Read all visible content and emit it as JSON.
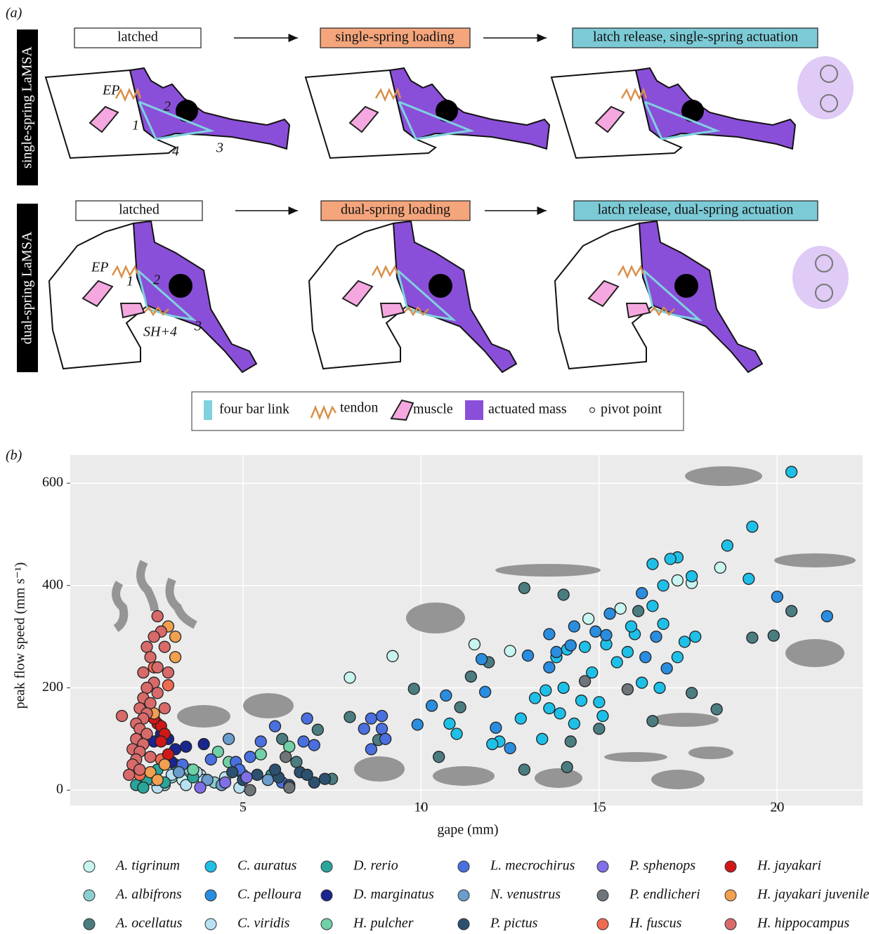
{
  "panel_a": {
    "label": "(a)",
    "rows": [
      {
        "title": "single-spring LaMSA",
        "steps": [
          "latched",
          "single-spring loading",
          "latch release, single-spring actuation"
        ],
        "annotations": [
          "EP",
          "1",
          "2",
          "3",
          "4"
        ]
      },
      {
        "title": "dual-spring LaMSA",
        "steps": [
          "latched",
          "dual-spring loading",
          "latch release, dual-spring actuation"
        ],
        "annotations": [
          "EP",
          "1",
          "2",
          "SH+4",
          "3"
        ]
      }
    ],
    "legend": [
      "four bar link",
      "tendon",
      "muscle",
      "actuated mass",
      "pivot point"
    ]
  },
  "chart_data": {
    "type": "scatter",
    "panel_label": "(b)",
    "x_label": "gape (mm)",
    "y_label": "peak flow speed (mm s⁻¹)",
    "xlim": [
      0.15,
      22.4
    ],
    "ylim": [
      -30,
      655
    ],
    "xticks": [
      5,
      10,
      15,
      20
    ],
    "yticks": [
      0,
      200,
      400,
      600
    ],
    "grid": true,
    "series": [
      {
        "name": "A. tigrinum",
        "color": "#c8f5f0",
        "x": [
          8.0,
          9.2,
          11.5,
          12.5,
          15.6,
          14.7,
          17.2,
          18.4,
          17.6,
          3.3,
          3.8
        ],
        "values": [
          220,
          262,
          285,
          272,
          355,
          335,
          410,
          435,
          405,
          20,
          30
        ]
      },
      {
        "name": "A. albifrons",
        "color": "#8ccfd0",
        "x": [
          3.0,
          3.5,
          4.2,
          5.0,
          2.8
        ],
        "values": [
          25,
          40,
          15,
          30,
          10
        ]
      },
      {
        "name": "A. ocellatus",
        "color": "#4a7c80",
        "x": [
          12.9,
          14.0,
          16.1,
          19.3,
          19.9,
          20.4,
          15.0,
          16.5,
          17.6,
          18.3,
          14.2,
          14.1,
          12.9,
          10.5,
          11.4,
          11.1,
          11.9,
          9.8,
          8.0,
          7.1,
          8.8,
          6.1,
          6.5,
          7.5
        ],
        "values": [
          395,
          382,
          350,
          298,
          302,
          350,
          120,
          135,
          190,
          158,
          95,
          45,
          40,
          65,
          222,
          162,
          250,
          198,
          143,
          118,
          98,
          100,
          55,
          22
        ]
      },
      {
        "name": "C. auratus",
        "color": "#1ec0e8",
        "x": [
          20.4,
          19.3,
          18.6,
          17.2,
          16.5,
          17.0,
          16.8,
          17.6,
          19.2,
          17.7,
          17.4,
          16.8,
          16.5,
          16.0,
          15.8,
          15.2,
          14.6,
          14.1,
          13.8,
          13.5,
          13.2,
          12.8,
          13.6,
          14.0,
          14.8,
          15.5,
          15.0,
          14.3,
          13.4,
          12.2,
          11.0,
          10.8,
          12.0,
          15.1,
          16.2,
          14.5,
          13.9,
          16.7,
          17.2,
          15.9
        ],
        "values": [
          622,
          515,
          478,
          455,
          442,
          452,
          400,
          418,
          413,
          300,
          290,
          325,
          360,
          305,
          270,
          285,
          280,
          275,
          260,
          195,
          180,
          140,
          160,
          200,
          230,
          250,
          172,
          130,
          100,
          95,
          110,
          130,
          90,
          145,
          210,
          175,
          150,
          200,
          260,
          320
        ]
      },
      {
        "name": "C. pelloura",
        "color": "#2a8de0",
        "x": [
          10.7,
          10.3,
          9.9,
          11.7,
          11.8,
          12.5,
          12.1,
          13.0,
          13.8,
          13.6,
          14.3,
          14.9,
          15.3,
          15.2,
          16.2,
          16.3,
          16.9,
          16.6,
          20.0,
          21.4,
          13.6,
          14.2
        ],
        "values": [
          185,
          165,
          128,
          256,
          192,
          82,
          122,
          263,
          270,
          305,
          320,
          310,
          345,
          303,
          385,
          260,
          238,
          300,
          378,
          340,
          240,
          283
        ]
      },
      {
        "name": "C. viridis",
        "color": "#b8e0f0",
        "x": [
          3.0,
          3.4,
          3.9,
          4.5,
          2.6,
          2.5,
          4.9,
          3.7
        ],
        "values": [
          30,
          10,
          20,
          25,
          5,
          20,
          5,
          35
        ]
      },
      {
        "name": "D. rerio",
        "color": "#2aa59a",
        "x": [
          2.0,
          2.3,
          2.6,
          3.1,
          2.8,
          2.2,
          3.6,
          5.8
        ],
        "values": [
          10,
          20,
          40,
          50,
          15,
          5,
          25,
          30
        ]
      },
      {
        "name": "D. marginatus",
        "color": "#1a2590",
        "x": [
          2.7,
          2.9,
          3.0,
          3.1,
          3.4,
          3.9,
          2.5
        ],
        "values": [
          110,
          100,
          55,
          80,
          85,
          90,
          95
        ]
      },
      {
        "name": "H. pulcher",
        "color": "#70d0a8",
        "x": [
          4.3,
          5.5,
          6.3,
          3.6,
          4.6
        ],
        "values": [
          75,
          70,
          85,
          40,
          55
        ]
      },
      {
        "name": "L. mecrochirus",
        "color": "#4a70e0",
        "x": [
          5.9,
          6.8,
          8.6,
          8.9,
          8.9,
          9.0,
          8.4,
          8.6,
          6.7,
          5.5,
          5.2,
          4.8,
          4.1,
          3.3,
          7.0,
          6.1,
          4.9
        ],
        "values": [
          125,
          140,
          140,
          145,
          120,
          100,
          120,
          80,
          95,
          95,
          65,
          55,
          60,
          50,
          88,
          15,
          40
        ]
      },
      {
        "name": "N. venustrus",
        "color": "#6a9ccc",
        "x": [
          4.6,
          4.0,
          3.2,
          5.7,
          4.4
        ],
        "values": [
          100,
          20,
          35,
          20,
          10
        ]
      },
      {
        "name": "P. pictus",
        "color": "#2c5070",
        "x": [
          5.0,
          5.4,
          6.0,
          6.6,
          7.0,
          7.3,
          6.3,
          4.7,
          5.9,
          6.8
        ],
        "values": [
          20,
          30,
          25,
          35,
          15,
          22,
          10,
          35,
          40,
          30
        ]
      },
      {
        "name": "P. sphenops",
        "color": "#8070e8",
        "x": [
          5.1,
          4.5,
          3.8
        ],
        "values": [
          25,
          15,
          5
        ]
      },
      {
        "name": "P. endlicheri",
        "color": "#70757c",
        "x": [
          6.3,
          6.2,
          5.2,
          14.6,
          15.8
        ],
        "values": [
          5,
          65,
          0,
          213,
          197
        ]
      },
      {
        "name": "H. fuscus",
        "color": "#f06a50",
        "x": [
          2.1,
          2.7,
          2.9,
          2.5
        ],
        "values": [
          30,
          60,
          205,
          240
        ]
      },
      {
        "name": "H. jayakari",
        "color": "#d01818",
        "x": [
          2.6,
          2.7,
          2.8,
          2.9,
          2.5,
          2.7
        ],
        "values": [
          130,
          125,
          110,
          70,
          140,
          95
        ]
      },
      {
        "name": "H. jayakari juvenile",
        "color": "#f0a050",
        "x": [
          2.9,
          3.1,
          3.1,
          2.5,
          2.8,
          2.4,
          2.6
        ],
        "values": [
          320,
          300,
          260,
          150,
          50,
          35,
          20
        ]
      },
      {
        "name": "H. hippocampus",
        "color": "#d86a6a",
        "x": [
          1.6,
          2.6,
          2.7,
          2.5,
          2.3,
          2.4,
          2.6,
          2.2,
          2.5,
          2.3,
          2.2,
          2.4,
          2.1,
          2.3,
          2.2,
          2.0,
          2.1,
          2.3,
          2.0,
          2.2,
          1.9,
          2.1,
          2.0,
          1.9,
          2.1,
          1.8,
          2.4,
          2.8,
          2.9,
          2.6,
          2.8
        ],
        "values": [
          145,
          340,
          310,
          300,
          280,
          260,
          240,
          230,
          210,
          200,
          180,
          170,
          160,
          150,
          140,
          130,
          120,
          110,
          100,
          90,
          80,
          75,
          60,
          50,
          40,
          30,
          65,
          280,
          230,
          190,
          160
        ]
      }
    ]
  }
}
